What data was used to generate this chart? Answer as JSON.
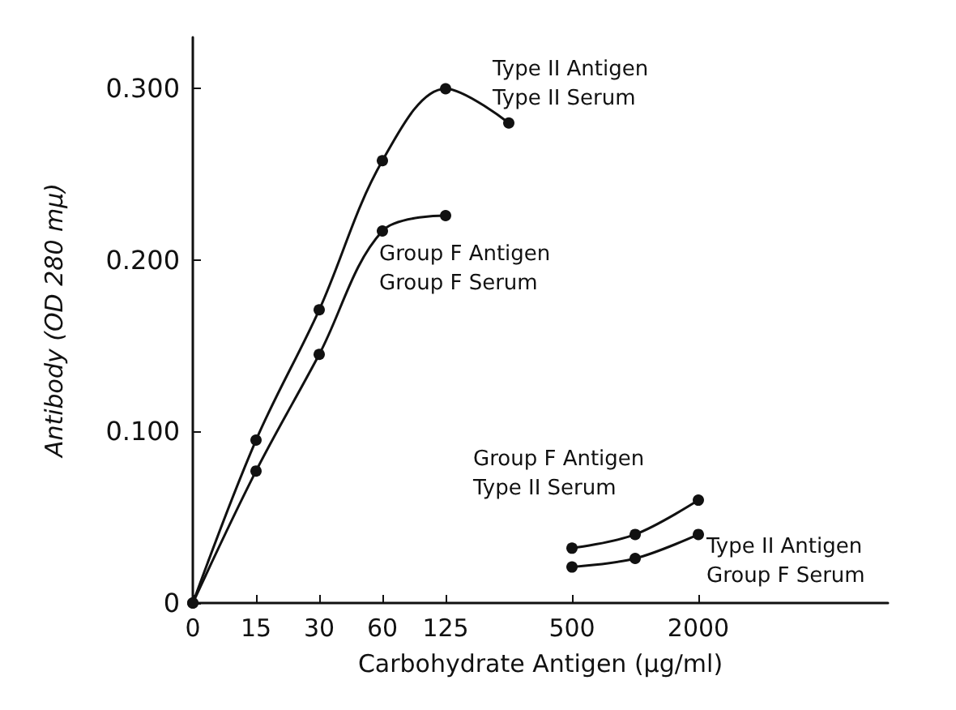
{
  "chart_data": {
    "type": "line",
    "xlabel": "Carbohydrate Antigen (μg/ml)",
    "ylabel": "Antibody (OD 280 mμ)",
    "categories": [
      "0",
      "15",
      "30",
      "60",
      "125",
      null,
      "500",
      null,
      "2000",
      null,
      null,
      null
    ],
    "series": [
      {
        "name": "Type II Antigen\nType II Serum",
        "color": "#111111",
        "values": [
          0,
          0.095,
          0.171,
          0.258,
          0.3,
          0.28,
          null,
          null,
          null,
          null,
          null,
          null
        ]
      },
      {
        "name": "Group F Antigen\nGroup F Serum",
        "color": "#111111",
        "values": [
          0,
          0.077,
          0.145,
          0.217,
          0.226,
          null,
          null,
          null,
          null,
          null,
          null,
          null
        ]
      },
      {
        "name": "Group F Antigen\nType II Serum",
        "color": "#111111",
        "values": [
          null,
          null,
          null,
          null,
          null,
          null,
          0.032,
          0.04,
          0.06,
          null,
          null,
          null
        ]
      },
      {
        "name": "Type II Antigen\nGroup F Serum",
        "color": "#111111",
        "values": [
          null,
          null,
          null,
          null,
          null,
          null,
          0.021,
          0.026,
          0.04,
          null,
          null,
          null
        ]
      }
    ],
    "ylim": [
      0,
      0.33
    ],
    "yticks": [
      0,
      {
        "value": 0.1,
        "label": "0.100"
      },
      {
        "value": 0.2,
        "label": "0.200"
      },
      {
        "value": 0.3,
        "label": "0.300"
      }
    ],
    "grid": false,
    "legend": false,
    "marker": "circle",
    "line_style": "solid"
  }
}
